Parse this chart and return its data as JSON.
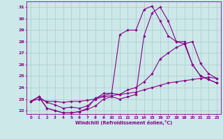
{
  "xlabel": "Windchill (Refroidissement éolien,°C)",
  "ylabel": "",
  "xlim": [
    -0.5,
    23.5
  ],
  "ylim": [
    21.7,
    31.5
  ],
  "xticks": [
    0,
    1,
    2,
    3,
    4,
    5,
    6,
    7,
    8,
    9,
    10,
    11,
    12,
    13,
    14,
    15,
    16,
    17,
    18,
    19,
    20,
    21,
    22,
    23
  ],
  "yticks": [
    22,
    23,
    24,
    25,
    26,
    27,
    28,
    29,
    30,
    31
  ],
  "bg_color": "#cce8e8",
  "line_color": "#880088",
  "grid_color": "#aacccc",
  "lines": [
    {
      "x": [
        0,
        1,
        2,
        3,
        4,
        5,
        6,
        7,
        8,
        9,
        10,
        11,
        12,
        13,
        14,
        15,
        16,
        17,
        18,
        19,
        20,
        21,
        22,
        23
      ],
      "y": [
        22.8,
        23.2,
        22.2,
        22.0,
        21.8,
        21.8,
        21.9,
        22.1,
        22.4,
        23.0,
        23.2,
        23.0,
        23.2,
        23.4,
        28.5,
        30.5,
        31.0,
        29.8,
        28.0,
        28.0,
        26.0,
        25.0,
        24.7,
        24.4
      ]
    },
    {
      "x": [
        0,
        1,
        2,
        3,
        4,
        5,
        6,
        7,
        8,
        9,
        10,
        11,
        12,
        13,
        14,
        15,
        16,
        17,
        18,
        19,
        20,
        21,
        22,
        23
      ],
      "y": [
        22.8,
        23.2,
        22.2,
        22.0,
        21.8,
        21.8,
        21.9,
        22.2,
        23.1,
        23.3,
        23.5,
        28.6,
        29.0,
        29.0,
        30.8,
        31.1,
        29.8,
        28.5,
        28.0,
        27.8,
        26.0,
        25.0,
        24.7,
        24.4
      ]
    },
    {
      "x": [
        0,
        1,
        2,
        3,
        4,
        5,
        6,
        7,
        8,
        9,
        10,
        11,
        12,
        13,
        14,
        15,
        16,
        17,
        18,
        19,
        20,
        21,
        22,
        23
      ],
      "y": [
        22.8,
        23.2,
        22.7,
        22.5,
        22.2,
        22.3,
        22.2,
        22.4,
        23.0,
        23.5,
        23.5,
        23.4,
        23.8,
        24.0,
        24.5,
        25.2,
        26.5,
        27.0,
        27.5,
        27.8,
        28.0,
        26.1,
        25.2,
        24.8
      ]
    },
    {
      "x": [
        0,
        1,
        2,
        3,
        4,
        5,
        6,
        7,
        8,
        9,
        10,
        11,
        12,
        13,
        14,
        15,
        16,
        17,
        18,
        19,
        20,
        21,
        22,
        23
      ],
      "y": [
        22.8,
        23.0,
        22.8,
        22.8,
        22.7,
        22.8,
        22.8,
        22.9,
        23.0,
        23.2,
        23.3,
        23.4,
        23.5,
        23.6,
        23.8,
        24.0,
        24.2,
        24.4,
        24.5,
        24.6,
        24.7,
        24.8,
        24.9,
        24.8
      ]
    }
  ]
}
